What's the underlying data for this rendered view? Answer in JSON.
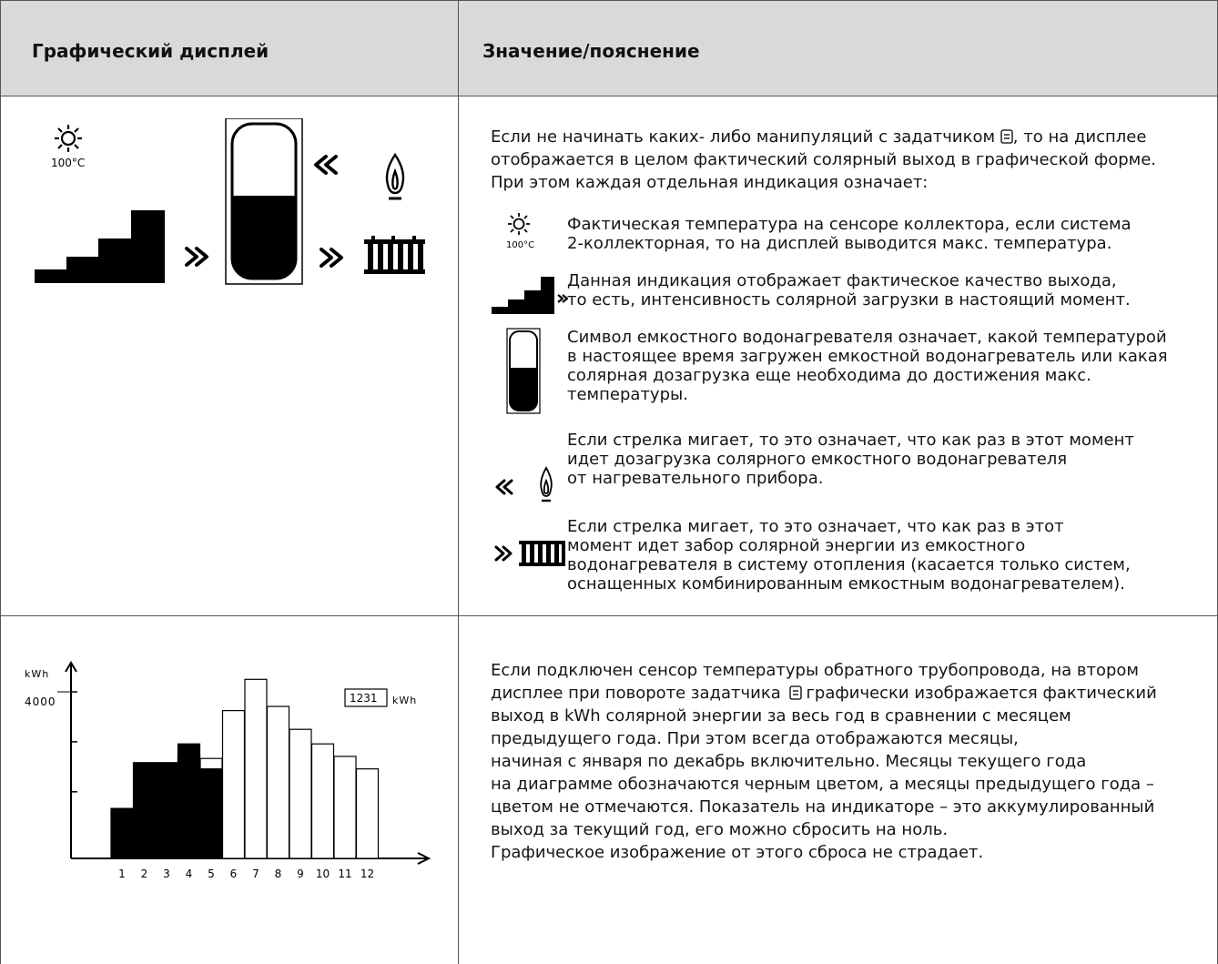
{
  "header": {
    "col1": "Графический дисплей",
    "col2": "Значение/пояснение"
  },
  "row1": {
    "display": {
      "temp_label": "100°C"
    },
    "intro_lines": [
      "Если не начинать каких- либо манипуляций с задатчиком",
      ", то на дисплее",
      "отображается в целом фактический солярный выход в графической форме.",
      "При этом каждая отдельная индикация означает:"
    ],
    "items": [
      {
        "icon": "sun-icon",
        "lines": [
          "Фактическая температура на сенсоре коллектора, если система",
          "2-коллекторная, то на дисплей выводится макс. температура."
        ]
      },
      {
        "icon": "yield-stairs-icon",
        "lines": [
          "Данная индикация отображает фактическое качество выхода,",
          "то есть, интенсивность солярной загрузки в настоящий момент."
        ]
      },
      {
        "icon": "tank-icon",
        "lines": [
          "Символ емкостного водонагревателя означает, какой температурой",
          "в настоящее время загружен емкостной водонагреватель или какая",
          "солярная дозагрузка еще необходима до достижения макс.",
          "температуры."
        ]
      },
      {
        "icon": "flame-icon",
        "lines": [
          "Если стрелка мигает, то это означает, что как раз в этот момент",
          "идет дозагрузка солярного емкостного водонагревателя",
          "от нагревательного прибора."
        ]
      },
      {
        "icon": "radiator-icon",
        "lines": [
          "Если стрелка мигает, то это означает, что как раз в этот",
          "момент идет забор солярной энергии из емкостного",
          "водонагревателя в систему отопления (касается только систем,",
          "оснащенных комбинированным емкостным водонагревателем)."
        ]
      }
    ],
    "item_temp_label": "100°C"
  },
  "row2": {
    "lines": [
      "Если подключен сенсор температуры обратного трубопровода, на втором",
      "дисплее при повороте задатчика",
      "графически изображается фактический",
      "выход в  kWh солярной энергии за весь год в сравнении с месяцем",
      "предыдущего года. При этом всегда отображаются месяцы,",
      "начиная с января по декабрь включительно. Месяцы текущего года",
      "на диаграмме обозначаются черным цветом, а месяцы предыдущего года –",
      "цветом не отмечаются. Показатель на индикаторе – это аккумулированный",
      "выход за текущий год, его можно сбросить на ноль.",
      "Графическое изображение от этого сброса не страдает."
    ]
  },
  "chart_data": {
    "type": "bar",
    "ylabel": "kWh",
    "y_tick_label": "4000",
    "counter_value": "1231",
    "counter_unit": "kWh",
    "categories": [
      "1",
      "2",
      "3",
      "4",
      "5",
      "6",
      "7",
      "8",
      "9",
      "10",
      "11",
      "12"
    ],
    "series": [
      {
        "values": [
          1200,
          2300,
          2300,
          2750,
          2150,
          null,
          null,
          null,
          null,
          null,
          null,
          null
        ]
      },
      {
        "values": [
          null,
          null,
          null,
          2500,
          2400,
          3550,
          4300,
          3650,
          3100,
          2750,
          2450,
          2150
        ]
      }
    ],
    "ylim": [
      0,
      4700
    ]
  },
  "colors": {
    "current_year": "#000000",
    "previous_year": "#ffffff",
    "header_bg": "#d9d9d9"
  }
}
